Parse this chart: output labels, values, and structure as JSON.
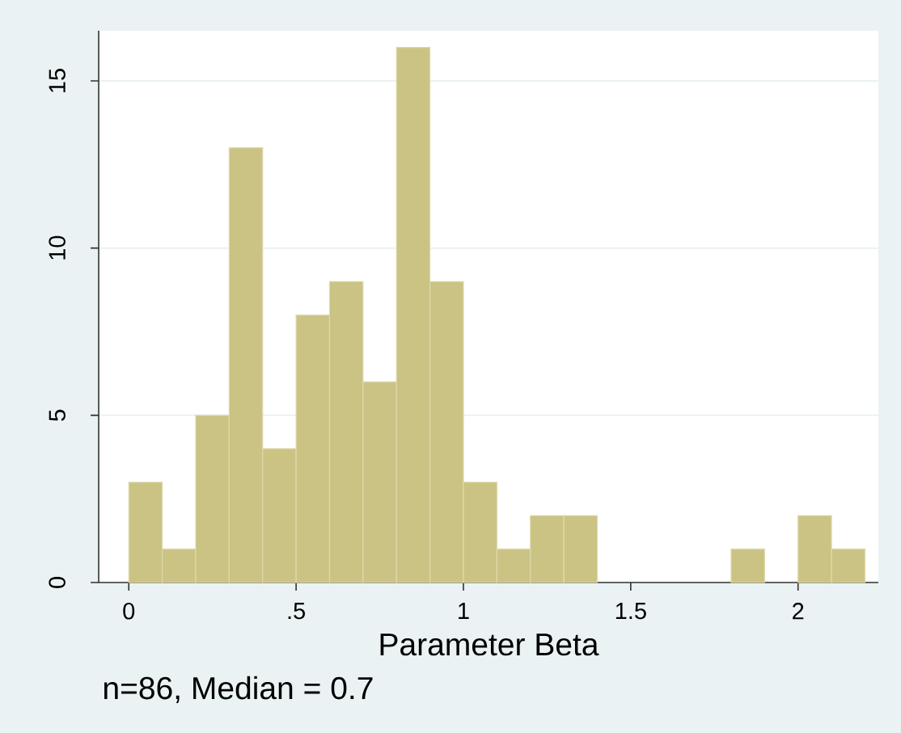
{
  "chart_data": {
    "type": "histogram",
    "xlabel": "Parameter Beta",
    "annotations": [
      "n=86, Median = 0.7"
    ],
    "bins": [
      0,
      0.1,
      0.2,
      0.3,
      0.4,
      0.5,
      0.6,
      0.7,
      0.8,
      0.9,
      1.0,
      1.1,
      1.2,
      1.3,
      1.4,
      1.5,
      1.6,
      1.7,
      1.8,
      1.9,
      2.0,
      2.1,
      2.2
    ],
    "values": [
      3,
      1,
      5,
      13,
      4,
      8,
      9,
      6,
      16,
      9,
      3,
      1,
      2,
      2,
      0,
      0,
      0,
      0,
      1,
      0,
      2,
      1
    ],
    "color": "#cbc384",
    "xlim": [
      -0.09,
      2.24
    ],
    "ylim": [
      0,
      16.5
    ],
    "xticks": [
      0,
      {
        "value": 0.5,
        "label": ".5"
      },
      1,
      1.5,
      2
    ],
    "yticks": [
      0,
      5,
      10,
      15
    ],
    "grid": "y"
  }
}
